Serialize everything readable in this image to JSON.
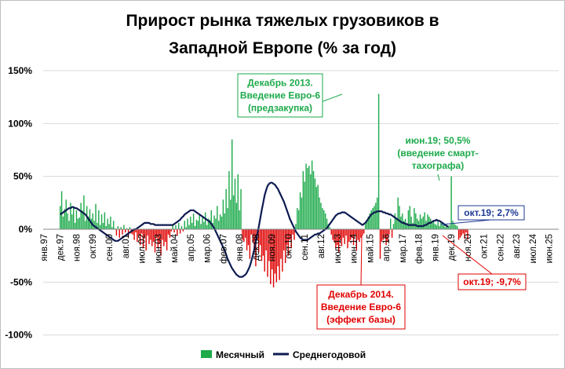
{
  "chart_data": {
    "type": "bar",
    "title_lines": [
      "Прирост рынка тяжелых грузовиков в",
      "Западной Европе (% за год)"
    ],
    "ylim": [
      -100,
      150
    ],
    "yticks": [
      150,
      100,
      50,
      0,
      -50,
      -100
    ],
    "ytick_labels": [
      "150%",
      "100%",
      "50%",
      "0%",
      "-50%",
      "-100%"
    ],
    "x_range": [
      "янв.97",
      "дек.25"
    ],
    "xtick_labels": [
      "янв.97",
      "дек.97",
      "ноя.98",
      "окт.99",
      "сен.00",
      "авг.01",
      "июл.02",
      "июн.03",
      "май.04",
      "апр.05",
      "мар.06",
      "фев.07",
      "янв.08",
      "дек.08",
      "ноя.09",
      "окт.10",
      "сен.11",
      "авг.12",
      "июл.13",
      "июн.14",
      "май.15",
      "апр.16",
      "мар.17",
      "фев.18",
      "янв.19",
      "дек.19",
      "ноя.20",
      "окт.21",
      "сен.22",
      "авг.23",
      "июл.24",
      "июн.25"
    ],
    "grid": true,
    "legend_position": "bottom",
    "colors": {
      "positive_bar": "#1daa4b",
      "negative_bar": "#e00000",
      "line": "#0d1b52",
      "ann_green": "#1daa4b",
      "ann_red": "#e00000",
      "ann_blue": "#1f3a93",
      "grid": "#d9d9d9"
    },
    "series": [
      {
        "name": "Месячный",
        "kind": "bar",
        "x_start": "янв.97",
        "values": [
          0,
          0,
          0,
          0,
          0,
          0,
          0,
          0,
          0,
          0,
          0,
          22,
          36,
          12,
          19,
          28,
          15,
          8,
          25,
          14,
          21,
          6,
          18,
          10,
          11,
          25,
          18,
          32,
          8,
          22,
          12,
          19,
          10,
          15,
          8,
          24,
          6,
          18,
          4,
          14,
          6,
          16,
          3,
          10,
          5,
          12,
          2,
          8,
          1,
          -6,
          3,
          -8,
          2,
          -5,
          4,
          -3,
          1,
          -7,
          2,
          -4,
          -5,
          -10,
          -3,
          -12,
          -6,
          -15,
          -4,
          -18,
          -8,
          -20,
          -6,
          -14,
          -10,
          -16,
          -12,
          -22,
          -8,
          -18,
          -14,
          -25,
          -10,
          -16,
          -12,
          -20,
          -5,
          -8,
          -2,
          5,
          -3,
          4,
          -6,
          6,
          -4,
          3,
          -2,
          8,
          2,
          10,
          4,
          12,
          6,
          15,
          3,
          9,
          8,
          14,
          5,
          11,
          7,
          16,
          4,
          10,
          9,
          18,
          6,
          13,
          10,
          22,
          8,
          14,
          12,
          28,
          15,
          38,
          20,
          55,
          28,
          85,
          32,
          48,
          25,
          52,
          18,
          38,
          -10,
          -12,
          -8,
          -20,
          -15,
          -28,
          -5,
          -12,
          -18,
          -35,
          -10,
          -22,
          -15,
          -30,
          -25,
          -40,
          -20,
          -45,
          -30,
          -52,
          -38,
          -55,
          -42,
          -50,
          -35,
          -48,
          -28,
          -40,
          -20,
          -32,
          -15,
          -25,
          -10,
          -18,
          -5,
          -10,
          5,
          20,
          18,
          35,
          30,
          55,
          45,
          62,
          58,
          60,
          52,
          65,
          55,
          48,
          40,
          42,
          30,
          25,
          20,
          18,
          15,
          10,
          5,
          2,
          -5,
          -10,
          -12,
          -18,
          -15,
          -22,
          -10,
          -16,
          -8,
          -14,
          -6,
          -18,
          -12,
          -10,
          -8,
          -15,
          -5,
          -20,
          -10,
          -12,
          -8,
          -6,
          -4,
          5,
          8,
          12,
          15,
          18,
          20,
          22,
          25,
          30,
          128,
          -28,
          -12,
          -10,
          -8,
          -15,
          -12,
          -5,
          10,
          -8,
          5,
          15,
          10,
          30,
          22,
          12,
          15,
          8,
          10,
          5,
          18,
          22,
          12,
          6,
          20,
          15,
          10,
          8,
          14,
          10,
          12,
          16,
          8,
          14,
          12,
          10,
          6,
          8,
          5,
          4,
          7,
          3,
          6,
          4,
          5,
          2,
          4,
          3,
          4,
          50,
          8,
          5,
          4,
          3,
          -10,
          -8,
          -6,
          -4,
          -9,
          -3,
          -9.7
        ]
      },
      {
        "name": "Среднегодовой",
        "kind": "line",
        "x_start": "дек.97",
        "values": [
          14,
          15,
          16,
          17,
          18,
          19,
          20,
          20,
          21,
          21,
          20,
          20,
          19,
          18,
          17,
          16,
          15,
          14,
          12,
          10,
          8,
          6,
          4,
          3,
          2,
          1,
          0,
          -1,
          -2,
          -3,
          -4,
          -5,
          -6,
          -7,
          -8,
          -9,
          -10,
          -11,
          -11,
          -11,
          -10,
          -9,
          -8,
          -7,
          -6,
          -5,
          -4,
          -3,
          -2,
          -1,
          0,
          0,
          1,
          2,
          3,
          4,
          5,
          6,
          6,
          6,
          6,
          5,
          5,
          5,
          4,
          4,
          4,
          4,
          4,
          4,
          4,
          4,
          4,
          4,
          4,
          4,
          4,
          5,
          6,
          7,
          8,
          9,
          11,
          12,
          14,
          15,
          16,
          17,
          18,
          18,
          18,
          17,
          16,
          15,
          14,
          13,
          12,
          11,
          10,
          9,
          8,
          7,
          5,
          3,
          1,
          -2,
          -5,
          -8,
          -11,
          -14,
          -17,
          -20,
          -24,
          -28,
          -31,
          -34,
          -37,
          -39,
          -41,
          -43,
          -44,
          -45,
          -45,
          -45,
          -44,
          -43,
          -41,
          -38,
          -35,
          -30,
          -25,
          -19,
          -12,
          -5,
          2,
          10,
          18,
          25,
          32,
          37,
          41,
          43,
          44,
          44,
          43,
          42,
          40,
          38,
          35,
          32,
          29,
          26,
          22,
          18,
          14,
          10,
          7,
          4,
          1,
          -2,
          -4,
          -6,
          -8,
          -9,
          -10,
          -10,
          -10,
          -10,
          -9,
          -8,
          -7,
          -6,
          -5,
          -5,
          -4,
          -4,
          -3,
          -2,
          -1,
          0,
          1,
          3,
          5,
          7,
          9,
          11,
          13,
          14,
          15,
          15,
          16,
          16,
          16,
          15,
          14,
          13,
          12,
          11,
          10,
          9,
          8,
          7,
          6,
          5,
          4,
          5,
          6,
          8,
          10,
          12,
          14,
          15,
          16,
          16,
          17,
          17,
          17,
          17,
          16,
          16,
          15,
          15,
          14,
          14,
          13,
          12,
          11,
          10,
          9,
          8,
          7,
          6,
          6,
          5,
          5,
          4,
          4,
          4,
          4,
          4,
          4,
          3,
          3,
          3,
          3,
          3,
          4,
          4,
          5,
          6,
          6,
          7,
          8,
          8,
          9,
          8,
          8,
          7,
          6,
          5,
          4,
          3,
          2.7
        ]
      }
    ],
    "annotations": [
      {
        "lines": [
          "Декабрь 2013.",
          "Введение Евро-6",
          "(предзакупка)"
        ],
        "color": "green"
      },
      {
        "lines": [
          "июн.19; 50,5%",
          "(введение смарт-",
          "тахографа)"
        ],
        "color": "green"
      },
      {
        "lines": [
          "окт.19; 2,7%"
        ],
        "color": "blue"
      },
      {
        "lines": [
          "окт.19; -9,7%"
        ],
        "color": "red"
      },
      {
        "lines": [
          "Декабрь 2014.",
          "Введение Евро-6",
          "(эффект базы)"
        ],
        "color": "red"
      }
    ]
  }
}
